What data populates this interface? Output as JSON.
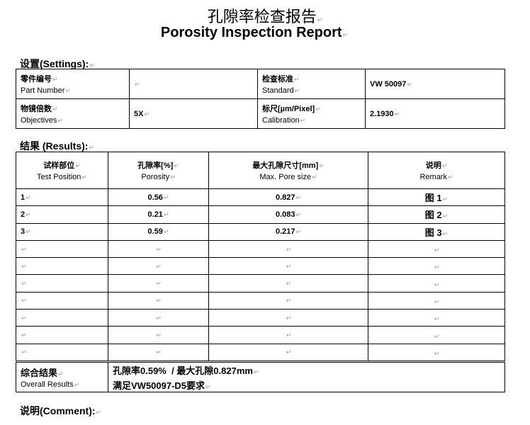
{
  "title_cn": "孔隙率检查报告",
  "title_en": "Porosity Inspection Report",
  "settings": {
    "label": "设置(Settings):",
    "part_number": {
      "cn": "零件编号",
      "en": "Part Number",
      "value": ""
    },
    "standard": {
      "cn": "检查标准",
      "en": "Standard",
      "value": "VW 50097"
    },
    "objectives": {
      "cn": "物镜倍数",
      "en": "Objectives",
      "value": "5X"
    },
    "calibration": {
      "cn": "标尺[µm/Pixel]",
      "en": "Calibration",
      "value": "2.1930"
    }
  },
  "results": {
    "label": "结果 (Results):",
    "headers": [
      {
        "cn": "试样部位",
        "en": "Test Position"
      },
      {
        "cn": "孔隙率[%]",
        "en": "Porosity"
      },
      {
        "cn": "最大孔隙尺寸[mm]",
        "en": "Max. Pore size"
      },
      {
        "cn": "说明",
        "en": "Remark"
      }
    ],
    "rows": [
      [
        "1",
        "0.56",
        "0.827",
        "图 1"
      ],
      [
        "2",
        "0.21",
        "0.083",
        "图 2"
      ],
      [
        "3",
        "0.59",
        "0.217",
        "图 3"
      ],
      [
        "",
        "",
        "",
        ""
      ],
      [
        "",
        "",
        "",
        ""
      ],
      [
        "",
        "",
        "",
        ""
      ],
      [
        "",
        "",
        "",
        ""
      ],
      [
        "",
        "",
        "",
        ""
      ],
      [
        "",
        "",
        "",
        ""
      ],
      [
        "",
        "",
        "",
        ""
      ]
    ]
  },
  "overall": {
    "cn": "综合结果",
    "en": "Overall Results",
    "line1": "孔隙率0.59%  / 最大孔隙0.827mm",
    "line2": "满足VW50097-D5要求"
  },
  "comment": {
    "label": "说明(Comment):"
  }
}
